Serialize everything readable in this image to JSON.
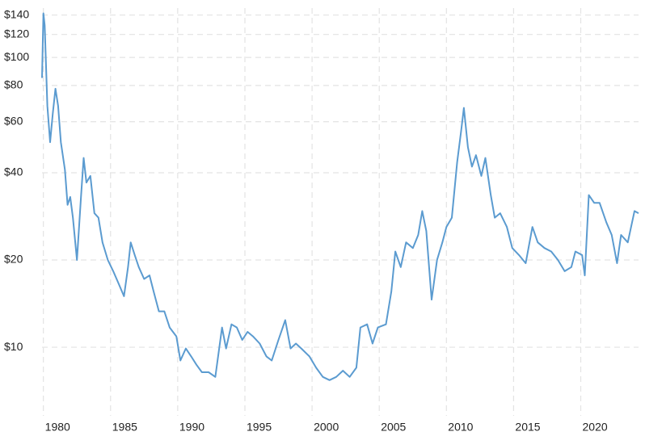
{
  "chart_data": {
    "type": "line",
    "color": "#5b9bd0",
    "log_y": true,
    "grid": true,
    "x": [
      1979.9,
      1980.0,
      1980.1,
      1980.3,
      1980.5,
      1980.7,
      1980.9,
      1981.1,
      1981.3,
      1981.6,
      1981.8,
      1982.0,
      1982.2,
      1982.5,
      1982.8,
      1983.0,
      1983.2,
      1983.5,
      1983.8,
      1984.1,
      1984.4,
      1984.8,
      1985.2,
      1985.6,
      1986.0,
      1986.3,
      1986.5,
      1986.8,
      1987.1,
      1987.5,
      1987.9,
      1988.2,
      1988.6,
      1989.0,
      1989.4,
      1989.9,
      1990.2,
      1990.6,
      1991.0,
      1991.4,
      1991.8,
      1992.3,
      1992.8,
      1993.3,
      1993.6,
      1994.0,
      1994.4,
      1994.8,
      1995.2,
      1995.6,
      1996.1,
      1996.6,
      1997.0,
      1997.5,
      1998.0,
      1998.4,
      1998.8,
      1999.2,
      1999.8,
      2000.3,
      2000.8,
      2001.3,
      2001.8,
      2002.3,
      2002.8,
      2003.3,
      2003.6,
      2004.1,
      2004.5,
      2004.9,
      2005.5,
      2005.9,
      2006.2,
      2006.6,
      2007.0,
      2007.5,
      2007.9,
      2008.2,
      2008.5,
      2008.9,
      2009.3,
      2009.7,
      2010.0,
      2010.4,
      2010.8,
      2011.1,
      2011.3,
      2011.6,
      2011.9,
      2012.2,
      2012.6,
      2012.9,
      2013.3,
      2013.6,
      2014.0,
      2014.5,
      2014.9,
      2015.4,
      2015.9,
      2016.4,
      2016.8,
      2017.3,
      2017.8,
      2018.3,
      2018.8,
      2019.3,
      2019.6,
      2020.1,
      2020.3,
      2020.6,
      2021.0,
      2021.4,
      2021.9,
      2022.3,
      2022.7,
      2023.0,
      2023.5,
      2024.0,
      2024.3
    ],
    "values": [
      85,
      142,
      129,
      68,
      51,
      64,
      78,
      68,
      51,
      41,
      31,
      33,
      28,
      20,
      33,
      45,
      37,
      39,
      29,
      28,
      23,
      20,
      18.3,
      16.6,
      15,
      18.9,
      23,
      20.8,
      18.9,
      17.2,
      17.7,
      15.6,
      13.3,
      13.3,
      11.7,
      10.9,
      9,
      9.9,
      9.3,
      8.7,
      8.2,
      8.2,
      7.9,
      11.7,
      9.9,
      12,
      11.7,
      10.6,
      11.3,
      10.9,
      10.3,
      9.3,
      9,
      10.6,
      12.4,
      9.9,
      10.3,
      9.9,
      9.3,
      8.5,
      7.9,
      7.7,
      7.9,
      8.3,
      7.9,
      8.5,
      11.7,
      12,
      10.3,
      11.7,
      12,
      15.6,
      21.4,
      18.9,
      23,
      22,
      24.4,
      29.5,
      25.2,
      14.6,
      20,
      23,
      26,
      28,
      43.5,
      56,
      67,
      49,
      42,
      46,
      39,
      45,
      33.5,
      28,
      29,
      26,
      22,
      20.8,
      19.5,
      26,
      23,
      22,
      21.4,
      20,
      18.3,
      18.9,
      21.4,
      20.8,
      17.7,
      33.5,
      31.5,
      31.5,
      27,
      24.4,
      19.5,
      24.4,
      23,
      29.5,
      29
    ],
    "xlim": [
      1979.9,
      2024.3
    ],
    "ylim": [
      5.8,
      148
    ],
    "xticks": [
      1980,
      1985,
      1990,
      1995,
      2000,
      2005,
      2010,
      2015,
      2020
    ],
    "yticks": [
      {
        "value": 10,
        "label": "$10"
      },
      {
        "value": 20,
        "label": "$20"
      },
      {
        "value": 40,
        "label": "$40"
      },
      {
        "value": 60,
        "label": "$60"
      },
      {
        "value": 80,
        "label": "$80"
      },
      {
        "value": 100,
        "label": "$100"
      },
      {
        "value": 120,
        "label": "$120"
      },
      {
        "value": 140,
        "label": "$140"
      }
    ]
  }
}
